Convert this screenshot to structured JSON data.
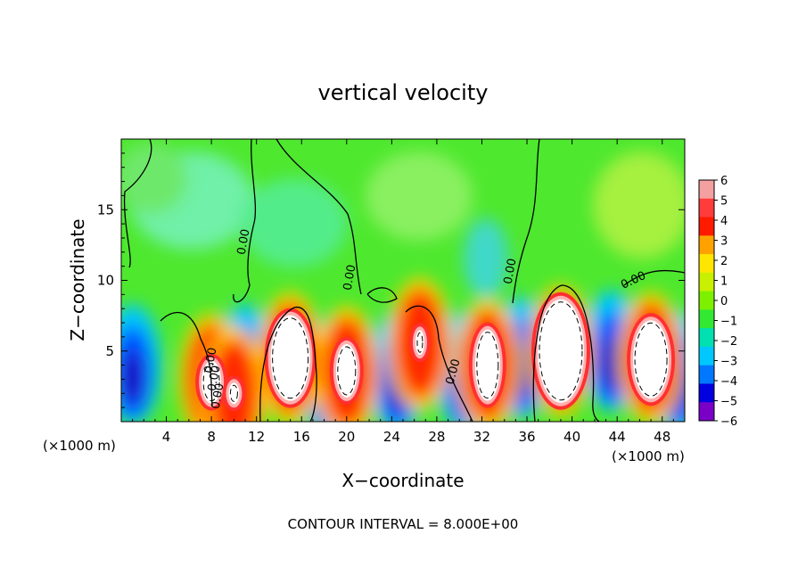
{
  "chart_data": {
    "type": "heatmap",
    "title": "vertical velocity",
    "xlabel": "X−coordinate",
    "ylabel": "Z−coordinate",
    "x_unit_left": "(×1000 m)",
    "x_unit_right": "(×1000 m)",
    "xlim": [
      0,
      50
    ],
    "ylim": [
      0,
      20
    ],
    "x_ticks": [
      "4",
      "8",
      "12",
      "16",
      "20",
      "24",
      "28",
      "32",
      "36",
      "40",
      "44",
      "48"
    ],
    "x_tick_values": [
      4,
      8,
      12,
      16,
      20,
      24,
      28,
      32,
      36,
      40,
      44,
      48
    ],
    "y_ticks": [
      "5",
      "10",
      "15"
    ],
    "y_tick_values": [
      5,
      10,
      15
    ],
    "colorbar": {
      "labels": [
        "6",
        "5",
        "4",
        "3",
        "2",
        "1",
        "0",
        "−1",
        "−2",
        "−3",
        "−4",
        "−5",
        "−6"
      ],
      "values": [
        6,
        5,
        4,
        3,
        2,
        1,
        0,
        -1,
        -2,
        -3,
        -4,
        -5,
        -6
      ],
      "colors": [
        "#f5a0a0",
        "#ff3b3b",
        "#ff1a00",
        "#ffa200",
        "#ffe600",
        "#c8f000",
        "#7df000",
        "#33e833",
        "#00e0b0",
        "#00c8ff",
        "#0078ff",
        "#0000e0",
        "#7a00c8"
      ]
    },
    "contour_labels": [
      "0.00",
      "0.00",
      "0.00",
      "0.00",
      "0.00",
      "0.00",
      "0.00",
      "0.00"
    ],
    "footnote": "CONTOUR INTERVAL = 8.000E+00",
    "features": [
      {
        "kind": "updraft",
        "x": 8.0,
        "z": 3.0
      },
      {
        "kind": "updraft",
        "x": 10.0,
        "z": 2.0
      },
      {
        "kind": "updraft",
        "x": 15.0,
        "z": 4.5
      },
      {
        "kind": "updraft",
        "x": 20.0,
        "z": 3.5
      },
      {
        "kind": "updraft",
        "x": 26.5,
        "z": 5.5
      },
      {
        "kind": "updraft",
        "x": 32.5,
        "z": 4.0
      },
      {
        "kind": "updraft",
        "x": 39.0,
        "z": 5.0
      },
      {
        "kind": "updraft",
        "x": 47.0,
        "z": 4.5
      },
      {
        "kind": "downdraft",
        "x": 1.0,
        "z": 4.0
      },
      {
        "kind": "downdraft",
        "x": 11.0,
        "z": 4.0
      },
      {
        "kind": "downdraft",
        "x": 18.5,
        "z": 3.0
      },
      {
        "kind": "downdraft",
        "x": 24.5,
        "z": 3.5
      },
      {
        "kind": "downdraft",
        "x": 30.5,
        "z": 3.5
      },
      {
        "kind": "downdraft",
        "x": 35.5,
        "z": 4.5
      },
      {
        "kind": "downdraft",
        "x": 43.5,
        "z": 5.0
      },
      {
        "kind": "downdraft",
        "x": 49.5,
        "z": 3.5
      }
    ]
  }
}
